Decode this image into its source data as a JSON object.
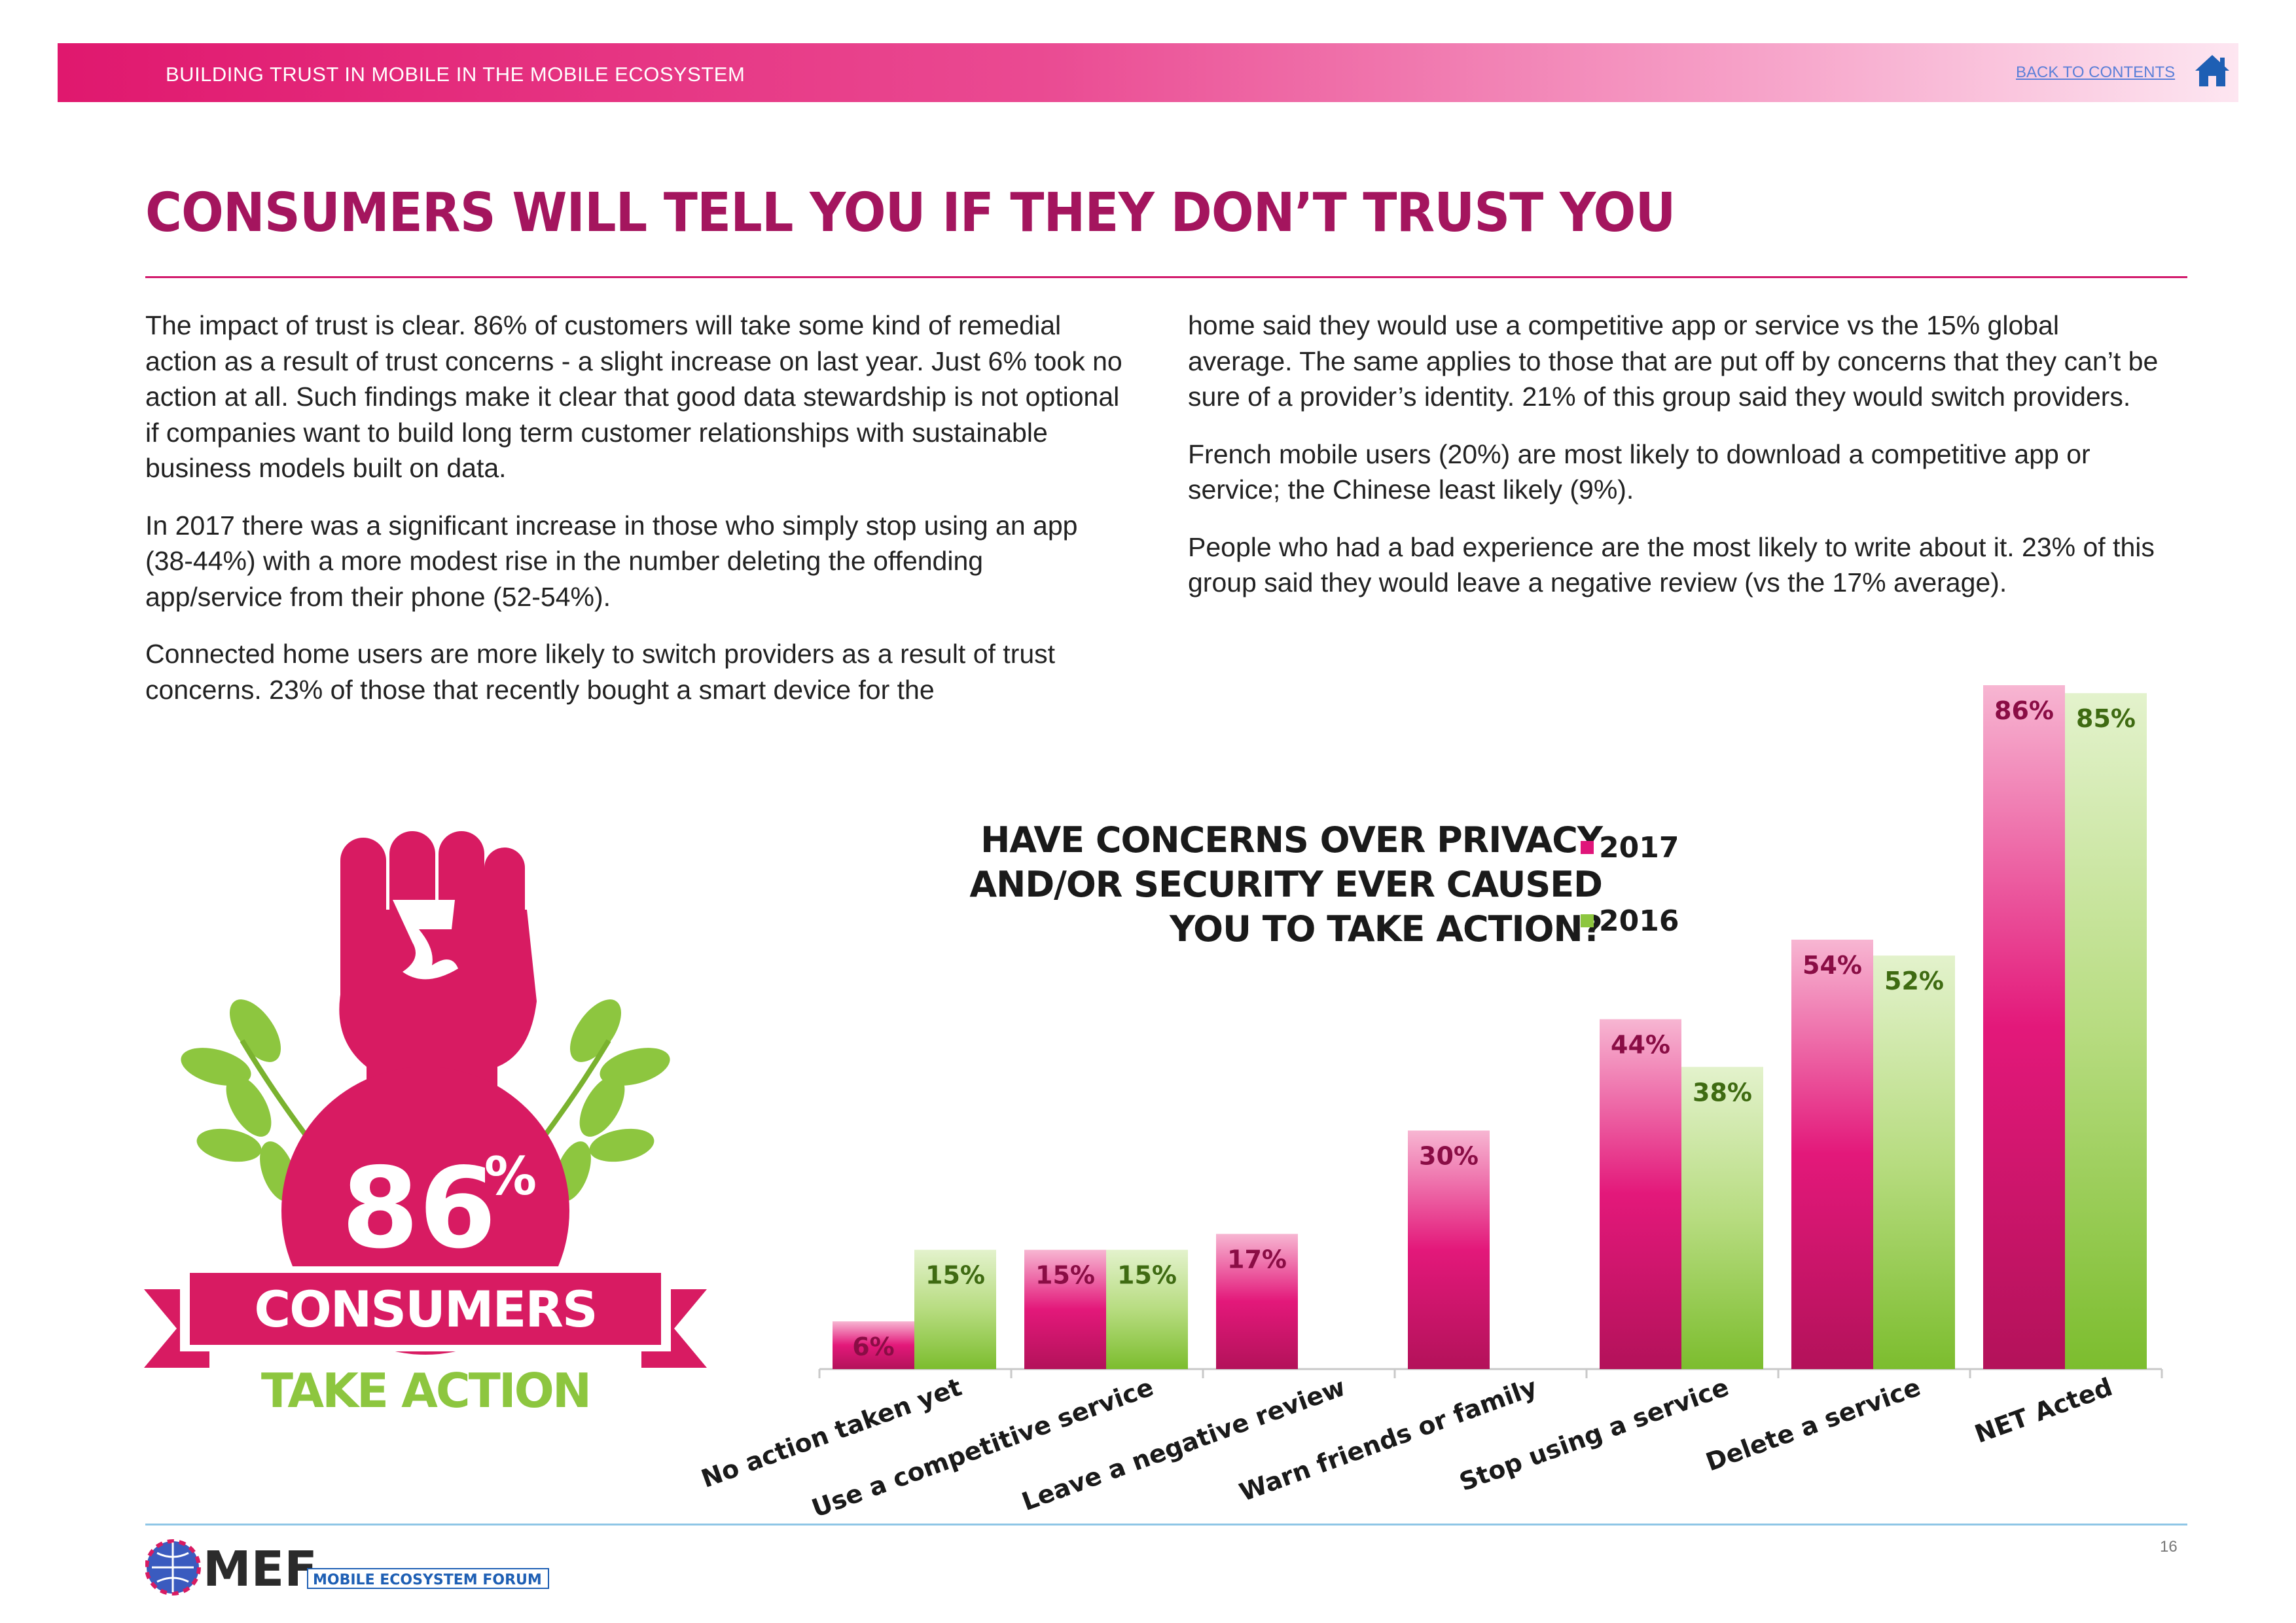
{
  "header": {
    "title": "BUILDING TRUST IN MOBILE IN THE MOBILE ECOSYSTEM",
    "back_link": "BACK TO CONTENTS"
  },
  "page_title": "CONSUMERS WILL TELL YOU IF THEY DON’T TRUST YOU",
  "left_column": [
    "The impact of trust is clear. 86% of customers will take some kind of remedial action as a result of trust concerns - a slight increase on last year. Just 6% took no action at all. Such findings make it clear that good data stewardship is not optional if companies want to build long term customer relationships with sustainable business models built on data.",
    "In 2017 there was a significant increase in those who simply stop using an app (38-44%) with a more modest rise in the number deleting the offending app/service from their phone (52-54%).",
    "Connected home users are more likely to switch providers as a result of trust concerns. 23% of those that recently bought a smart device for the"
  ],
  "right_column": [
    "home said they would use a competitive app or service vs the 15% global average. The same applies to those that are put off by concerns that they can’t be sure of a provider’s identity. 21% of this group said they would switch providers.",
    "French mobile users (20%) are most likely to download a competitive app or service; the Chinese least likely (9%).",
    "People who had a bad experience are the most likely to write about it. 23% of this group said they would leave a negative review (vs the 17% average)."
  ],
  "badge": {
    "percent": "86",
    "percent_sign": "%",
    "line1": "CONSUMERS",
    "line2": "TAKE ACTION"
  },
  "chart_data": {
    "type": "bar",
    "title": "HAVE CONCERNS OVER PRIVACY AND/OR SECURITY EVER CAUSED YOU TO TAKE ACTION?",
    "title_lines": [
      "HAVE CONCERNS OVER PRIVACY",
      "AND/OR SECURITY EVER CAUSED",
      "YOU TO TAKE ACTION?"
    ],
    "categories": [
      "No action taken yet",
      "Use a competitive service",
      "Leave a negative review",
      "Warn friends or family",
      "Stop using a service",
      "Delete a  service",
      "NET Acted"
    ],
    "series": [
      {
        "name": "2017",
        "values": [
          6,
          15,
          17,
          30,
          44,
          54,
          86
        ],
        "labels": [
          "6%",
          "15%",
          "17%",
          "30%",
          "44%",
          "54%",
          "86%"
        ],
        "color": "#e0157a",
        "label_color": "#8a0d45"
      },
      {
        "name": "2016",
        "values": [
          15,
          15,
          null,
          null,
          38,
          52,
          85
        ],
        "labels": [
          "15%",
          "15%",
          "",
          "",
          "38%",
          "52%",
          "85%"
        ],
        "color": "#8dc63f",
        "label_color": "#3f6b12"
      }
    ],
    "xlabel": "",
    "ylabel": "",
    "ylim": [
      0,
      86
    ],
    "grid": false,
    "legend_position": "top-center"
  },
  "footer": {
    "logo_text": "MEF",
    "logo_subtitle": "MOBILE ECOSYSTEM FORUM",
    "page_number": "16"
  },
  "colors": {
    "accent": "#e0186e",
    "title": "#a4155e",
    "green": "#8dc63f",
    "link": "#5a7fd8"
  }
}
